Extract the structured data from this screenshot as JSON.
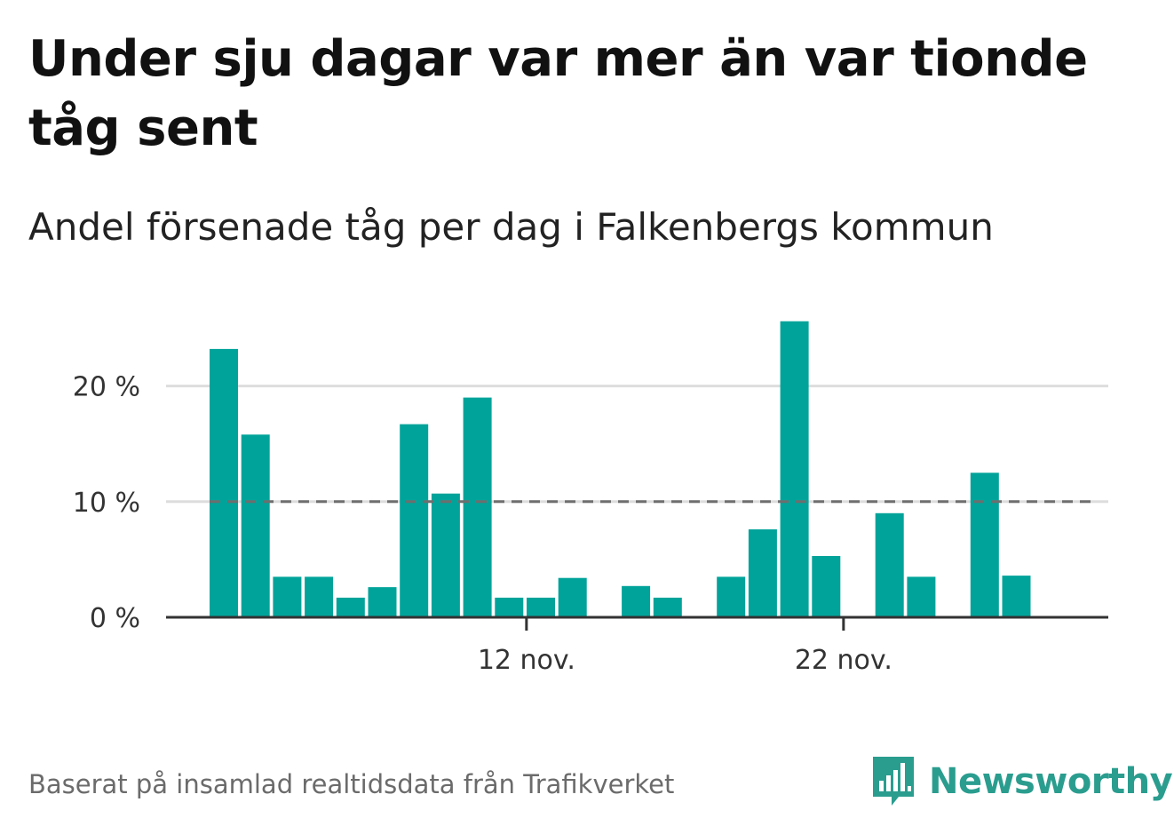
{
  "title": "Under sju dagar var mer än var tionde tåg sent",
  "subtitle": "Andel försenade tåg per dag i Falkenbergs kommun",
  "source": "Baserat på insamlad realtidsdata från Trafikverket",
  "brand": {
    "name": "Newsworthy",
    "icon": "bar-chart-speech-bubble-icon"
  },
  "colors": {
    "bar": "#00a39a",
    "grid": "#dddddd",
    "axis": "#333333",
    "reference": "#6e6e6e",
    "brand": "#2a9d8f"
  },
  "chart_data": {
    "type": "bar",
    "title": "Under sju dagar var mer än var tionde tåg sent",
    "subtitle": "Andel försenade tåg per dag i Falkenbergs kommun",
    "xlabel": "",
    "ylabel": "",
    "x": [
      "2 nov.",
      "3 nov.",
      "4 nov.",
      "5 nov.",
      "6 nov.",
      "7 nov.",
      "8 nov.",
      "9 nov.",
      "10 nov.",
      "11 nov.",
      "12 nov.",
      "13 nov.",
      "14 nov.",
      "15 nov.",
      "16 nov.",
      "17 nov.",
      "18 nov.",
      "19 nov.",
      "20 nov.",
      "21 nov.",
      "22 nov.",
      "23 nov.",
      "24 nov.",
      "25 nov.",
      "26 nov.",
      "27 nov.",
      "28 nov.",
      "29 nov."
    ],
    "values": [
      23.2,
      15.8,
      3.5,
      3.5,
      1.7,
      2.6,
      16.7,
      10.7,
      19.0,
      1.7,
      1.7,
      3.4,
      null,
      2.7,
      1.7,
      null,
      3.5,
      7.6,
      25.6,
      5.3,
      null,
      9.0,
      3.5,
      null,
      12.5,
      3.6,
      null,
      null
    ],
    "ylim": [
      0,
      27
    ],
    "yticks": [
      0,
      10,
      20
    ],
    "ytick_labels": [
      "0 %",
      "10 %",
      "20 %"
    ],
    "xticks": [
      "12 nov.",
      "22 nov."
    ],
    "reference_line": {
      "value": 10,
      "style": "dashed"
    },
    "grid": true,
    "legend": "none"
  }
}
